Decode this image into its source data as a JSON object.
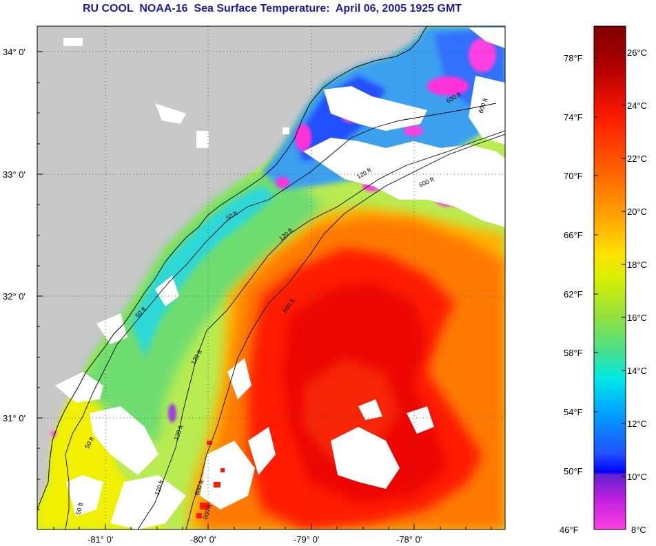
{
  "title": "RU COOL  NOAA-16  Sea Surface Temperature:  April 06, 2005 1925 GMT",
  "map": {
    "lat_labels": [
      "34° 0'",
      "33° 0'",
      "32° 0'",
      "31° 0'"
    ],
    "lon_labels": [
      "-81° 0'",
      "-80° 0'",
      "-79° 0'",
      "-78° 0'"
    ],
    "grid": "dotted",
    "land_color": "#c8c8c8",
    "cloud_color": "#ffffff",
    "isobath_labels": [
      "50 ft",
      "50 ft",
      "50 ft",
      "50 ft",
      "120 ft",
      "120 ft",
      "120 ft",
      "120 ft",
      "120 ft",
      "600 ft",
      "600 ft",
      "600 ft",
      "600 ft",
      "600 ft",
      "600 ft"
    ]
  },
  "colorbar": {
    "fahrenheit_labels": [
      "78°F",
      "74°F",
      "70°F",
      "66°F",
      "62°F",
      "58°F",
      "54°F",
      "50°F",
      "46°F"
    ],
    "celsius_labels": [
      "26°C",
      "24°C",
      "22°C",
      "20°C",
      "18°C",
      "16°C",
      "14°C",
      "12°C",
      "10°C",
      "8°C"
    ],
    "gradient_colors": [
      "#800000",
      "#c00000",
      "#ff1a00",
      "#ff6a00",
      "#ffa500",
      "#ffe000",
      "#d8f000",
      "#90e040",
      "#40e090",
      "#00e8e8",
      "#00a0ff",
      "#2050ff",
      "#0000ff",
      "#8020c0",
      "#ff20d0",
      "#ff40e0"
    ]
  }
}
